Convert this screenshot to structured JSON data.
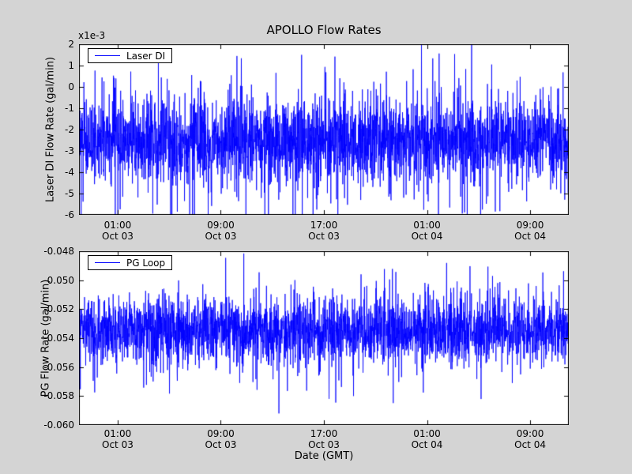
{
  "colors": {
    "figure_background": "#d4d4d4",
    "plot_background": "#ffffff",
    "line": "#0000ff",
    "text": "#000000",
    "axis": "#000000"
  },
  "chart_data": [
    {
      "id": "laser_di_subplot",
      "type": "line",
      "title": "APOLLO Flow Rates",
      "ylabel": "Laser DI Flow Rate (gal/min)",
      "y_offset_text": "x1e-3",
      "ylim": [
        -0.006,
        0.002
      ],
      "yticks": [
        {
          "value": 0.002,
          "label": "2"
        },
        {
          "value": 0.001,
          "label": "1"
        },
        {
          "value": 0.0,
          "label": "0"
        },
        {
          "value": -0.001,
          "label": "-1"
        },
        {
          "value": -0.002,
          "label": "-2"
        },
        {
          "value": -0.003,
          "label": "-3"
        },
        {
          "value": -0.004,
          "label": "-4"
        },
        {
          "value": -0.005,
          "label": "-5"
        },
        {
          "value": -0.006,
          "label": "-6"
        }
      ],
      "xlim_hours": [
        0,
        38
      ],
      "xticks": [
        {
          "hour": 3,
          "line1": "01:00",
          "line2": "Oct 03"
        },
        {
          "hour": 11,
          "line1": "09:00",
          "line2": "Oct 03"
        },
        {
          "hour": 19,
          "line1": "17:00",
          "line2": "Oct 03"
        },
        {
          "hour": 27,
          "line1": "01:00",
          "line2": "Oct 04"
        },
        {
          "hour": 35,
          "line1": "09:00",
          "line2": "Oct 04"
        }
      ],
      "xlabel": "",
      "legend": {
        "position": "upper left"
      },
      "series": [
        {
          "name": "Laser DI",
          "color": "#0000ff",
          "representation": "dense high-frequency noise band with intermittent spikes",
          "baseline": -0.0025,
          "noise_std": 0.0009,
          "spike_prob": 0.12,
          "spike_scale": 0.0032,
          "observed_min": -0.006,
          "observed_max": 0.002,
          "points": 3000,
          "seed": 7
        }
      ]
    },
    {
      "id": "pg_loop_subplot",
      "type": "line",
      "title": "",
      "ylabel": "PG Flow Rate (gal/min)",
      "y_offset_text": "",
      "ylim": [
        -0.06,
        -0.048
      ],
      "yticks": [
        {
          "value": -0.048,
          "label": "-0.048"
        },
        {
          "value": -0.05,
          "label": "-0.050"
        },
        {
          "value": -0.052,
          "label": "-0.052"
        },
        {
          "value": -0.054,
          "label": "-0.054"
        },
        {
          "value": -0.056,
          "label": "-0.056"
        },
        {
          "value": -0.058,
          "label": "-0.058"
        },
        {
          "value": -0.06,
          "label": "-0.060"
        }
      ],
      "xlim_hours": [
        0,
        38
      ],
      "xticks": [
        {
          "hour": 3,
          "line1": "01:00",
          "line2": "Oct 03"
        },
        {
          "hour": 11,
          "line1": "09:00",
          "line2": "Oct 03"
        },
        {
          "hour": 19,
          "line1": "17:00",
          "line2": "Oct 03"
        },
        {
          "hour": 27,
          "line1": "01:00",
          "line2": "Oct 04"
        },
        {
          "hour": 35,
          "line1": "09:00",
          "line2": "Oct 04"
        }
      ],
      "xlabel": "Date (GMT)",
      "legend": {
        "position": "upper left"
      },
      "series": [
        {
          "name": "PG Loop",
          "color": "#0000ff",
          "representation": "dense high-frequency noise band with intermittent spikes",
          "baseline": -0.0535,
          "noise_std": 0.0011,
          "spike_prob": 0.1,
          "spike_scale": 0.0035,
          "observed_min": -0.0592,
          "observed_max": -0.0481,
          "points": 3000,
          "seed": 13
        }
      ]
    }
  ]
}
